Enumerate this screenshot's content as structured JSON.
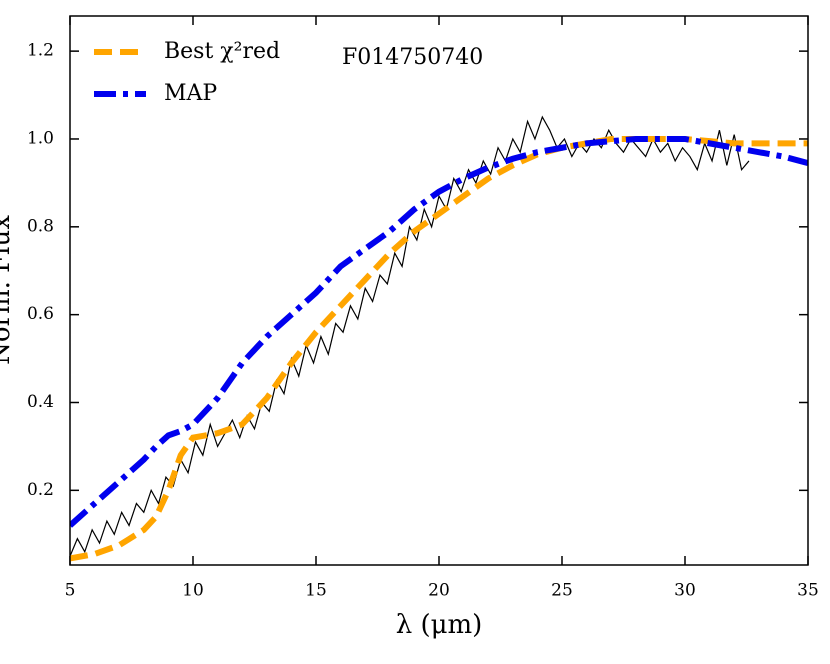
{
  "chart_data": {
    "type": "line",
    "annotation": "F014750740",
    "xlabel": "λ (μm)",
    "ylabel": "Norm. Flux",
    "xlim": [
      5,
      35
    ],
    "ylim": [
      0.03,
      1.28
    ],
    "xticks": [
      5,
      10,
      15,
      20,
      25,
      30,
      35
    ],
    "yticks": [
      0.2,
      0.4,
      0.6,
      {
        "value": 1,
        "label": "1.0"
      },
      1.2,
      0.8
    ],
    "legend": "upper left",
    "series": [
      {
        "color": "#000000",
        "x": [
          5,
          5.3,
          5.6,
          5.9,
          6.2,
          6.5,
          6.8,
          7.1,
          7.4,
          7.7,
          8,
          8.3,
          8.6,
          8.9,
          9.2,
          9.5,
          9.8,
          10.1,
          10.4,
          10.7,
          11,
          11.3,
          11.6,
          11.9,
          12.2,
          12.5,
          12.8,
          13.1,
          13.4,
          13.7,
          14,
          14.3,
          14.6,
          14.9,
          15.2,
          15.5,
          15.8,
          16.1,
          16.4,
          16.7,
          17,
          17.3,
          17.6,
          17.9,
          18.2,
          18.5,
          18.8,
          19.1,
          19.4,
          19.7,
          20,
          20.3,
          20.6,
          20.9,
          21.2,
          21.5,
          21.8,
          22.1,
          22.4,
          22.7,
          23,
          23.3,
          23.6,
          23.9,
          24.2,
          24.5,
          24.8,
          25.1,
          25.4,
          25.7,
          26,
          26.3,
          26.6,
          26.9,
          27.2,
          27.5,
          27.8,
          28.1,
          28.4,
          28.7,
          29,
          29.3,
          29.6,
          29.9,
          30.2,
          30.5,
          30.8,
          31.1,
          31.4,
          31.7,
          32,
          32.3,
          32.6
        ],
        "values": [
          0.05,
          0.09,
          0.06,
          0.11,
          0.08,
          0.13,
          0.1,
          0.15,
          0.12,
          0.17,
          0.15,
          0.2,
          0.17,
          0.23,
          0.21,
          0.27,
          0.24,
          0.31,
          0.28,
          0.35,
          0.3,
          0.33,
          0.36,
          0.32,
          0.37,
          0.34,
          0.4,
          0.38,
          0.45,
          0.42,
          0.5,
          0.46,
          0.53,
          0.49,
          0.55,
          0.51,
          0.58,
          0.56,
          0.62,
          0.59,
          0.66,
          0.63,
          0.69,
          0.67,
          0.74,
          0.71,
          0.8,
          0.77,
          0.84,
          0.8,
          0.87,
          0.84,
          0.91,
          0.88,
          0.93,
          0.9,
          0.95,
          0.92,
          0.98,
          0.95,
          1.0,
          0.97,
          1.04,
          1.0,
          1.05,
          1.02,
          0.98,
          1.0,
          0.96,
          0.99,
          0.97,
          1.0,
          0.98,
          1.02,
          0.99,
          0.97,
          1.0,
          0.98,
          0.96,
          1.0,
          0.97,
          0.99,
          0.95,
          0.98,
          0.96,
          0.93,
          0.99,
          0.95,
          1.02,
          0.94,
          1.01,
          0.93,
          0.95
        ]
      },
      {
        "name": "Best χ²red",
        "color": "#ffa500",
        "x": [
          5,
          6,
          7,
          8,
          8.5,
          9,
          9.5,
          10,
          11,
          12,
          13,
          14,
          15,
          16,
          17,
          18,
          19,
          20,
          21,
          22,
          23,
          24,
          25,
          26,
          27,
          28,
          29,
          30,
          31,
          32,
          33,
          34,
          35
        ],
        "values": [
          0.045,
          0.055,
          0.075,
          0.11,
          0.14,
          0.2,
          0.28,
          0.32,
          0.33,
          0.35,
          0.41,
          0.49,
          0.56,
          0.62,
          0.68,
          0.74,
          0.79,
          0.83,
          0.87,
          0.91,
          0.94,
          0.965,
          0.98,
          0.99,
          1.0,
          1.0,
          1.0,
          1.0,
          0.995,
          0.99,
          0.99,
          0.99,
          0.99
        ]
      },
      {
        "name": "MAP",
        "color": "#0000ee",
        "x": [
          5,
          6,
          7,
          8,
          8.5,
          9,
          9.5,
          10,
          11,
          12,
          13,
          14,
          15,
          16,
          17,
          18,
          19,
          20,
          21,
          22,
          23,
          24,
          25,
          26,
          27,
          28,
          29,
          30,
          31,
          32,
          33,
          34,
          35
        ],
        "values": [
          0.12,
          0.17,
          0.22,
          0.27,
          0.3,
          0.325,
          0.335,
          0.35,
          0.41,
          0.49,
          0.55,
          0.6,
          0.65,
          0.71,
          0.75,
          0.79,
          0.84,
          0.88,
          0.91,
          0.935,
          0.955,
          0.97,
          0.98,
          0.99,
          0.995,
          1.0,
          1.0,
          1.0,
          0.99,
          0.98,
          0.97,
          0.96,
          0.945
        ]
      }
    ]
  }
}
